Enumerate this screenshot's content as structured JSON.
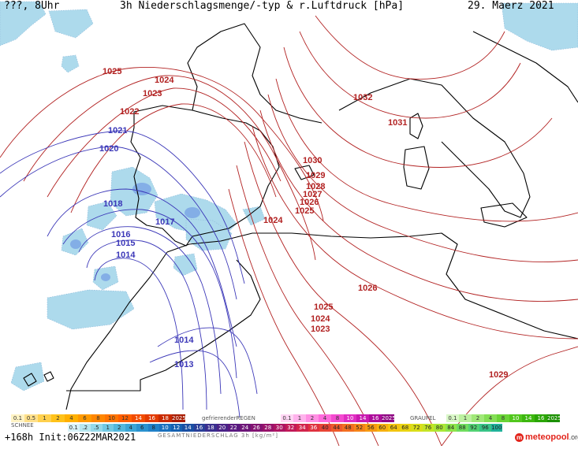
{
  "header": {
    "left": "???, 8Uhr",
    "title": "3h Niederschlagsmenge/-typ & r.Luftdruck [hPa]",
    "date": "29. Maerz 2021"
  },
  "footer": {
    "run_info": "+168h  Init:06Z22MAR2021",
    "brand": "meteopool",
    "brand_suffix": ".org"
  },
  "legend": {
    "snow_title": "SCHNEE",
    "snow_values": [
      "0.1",
      "0.5",
      "1",
      "2",
      "4",
      "6",
      "8",
      "10",
      "12",
      "14",
      "16",
      "18",
      "2025+"
    ],
    "freezing_rain_title": "gefrierenderREGEN",
    "freezing_rain_values": [
      "0.1",
      "1",
      "2",
      "4",
      "8",
      "10",
      "14",
      "16",
      "2025+"
    ],
    "hail_title": "GRAUPEL",
    "hail_values": [
      "0.1",
      "1",
      "2",
      "4",
      "8",
      "10",
      "14",
      "16",
      "2025+"
    ],
    "total_values": [
      "0.1",
      ".2",
      ".5",
      "1",
      "2",
      "4",
      "6",
      "8",
      "10",
      "12",
      "14",
      "16",
      "18",
      "20",
      "22",
      "24",
      "26",
      "28",
      "30",
      "32",
      "34",
      "36",
      "40",
      "44",
      "48",
      "52",
      "56",
      "60",
      "64",
      "68",
      "72",
      "76",
      "80",
      "84",
      "88",
      "92",
      "96",
      "100"
    ],
    "total_title": "GESAMTNIEDERSCHLAG 3h [kg/m²]",
    "colors": {
      "snow": [
        "#fff3c4",
        "#ffe08a",
        "#ffd04d",
        "#ffc21a",
        "#ffb000",
        "#ff9a00",
        "#ff8600",
        "#ff7300",
        "#ff5f00",
        "#f24c00",
        "#e23a00",
        "#c92a00",
        "#a81c00"
      ],
      "freezing_rain": [
        "#ffd6f4",
        "#ffb3ec",
        "#ff8fe3",
        "#ff6bdb",
        "#f44bd0",
        "#e02dc2",
        "#c919b0",
        "#ad0d9a",
        "#8e0682"
      ],
      "hail": [
        "#d9f7c7",
        "#bdf0a0",
        "#a0e878",
        "#84df55",
        "#6ad436",
        "#52c71e",
        "#3db70f",
        "#2aa505",
        "#1b9000"
      ],
      "total": [
        "#d8f2f7",
        "#b7e7f0",
        "#94d9ea",
        "#72c9e3",
        "#53b8dd",
        "#3aa5d6",
        "#2a92cf",
        "#2080c7",
        "#1a70bd",
        "#1560b0",
        "#1a4fa3",
        "#2a3f98",
        "#3a2f8f",
        "#4a2387",
        "#5a1a80",
        "#6d1678",
        "#821371",
        "#98126a",
        "#ad1462",
        "#c11a58",
        "#d2244c",
        "#df3240",
        "#e84535",
        "#ef5a2a",
        "#f36f20",
        "#f58418",
        "#f69a12",
        "#f6b00f",
        "#f2c40f",
        "#e9d412",
        "#d9de1a",
        "#c4e426",
        "#aae636",
        "#8de349",
        "#6fdc5e",
        "#52d173",
        "#37c387",
        "#20b19a"
      ]
    }
  },
  "isobars": {
    "red_color": "#b22222",
    "blue_color": "#3b37b8",
    "labels": [
      {
        "text": "1025",
        "kind": "red"
      },
      {
        "text": "1024",
        "kind": "red"
      },
      {
        "text": "1023",
        "kind": "red"
      },
      {
        "text": "1022",
        "kind": "red"
      },
      {
        "text": "1021",
        "kind": "blue"
      },
      {
        "text": "1020",
        "kind": "blue"
      },
      {
        "text": "1018",
        "kind": "blue"
      },
      {
        "text": "1017",
        "kind": "blue"
      },
      {
        "text": "1016",
        "kind": "blue"
      },
      {
        "text": "1015",
        "kind": "blue"
      },
      {
        "text": "1014",
        "kind": "blue"
      },
      {
        "text": "1032",
        "kind": "red"
      },
      {
        "text": "1031",
        "kind": "red"
      },
      {
        "text": "1030",
        "kind": "red"
      },
      {
        "text": "1029",
        "kind": "red"
      },
      {
        "text": "1028",
        "kind": "red"
      },
      {
        "text": "1027",
        "kind": "red"
      },
      {
        "text": "1026",
        "kind": "red"
      },
      {
        "text": "1025",
        "kind": "red"
      },
      {
        "text": "1024",
        "kind": "red"
      },
      {
        "text": "1026",
        "kind": "red"
      },
      {
        "text": "1025",
        "kind": "red"
      },
      {
        "text": "1024",
        "kind": "red"
      },
      {
        "text": "1023",
        "kind": "red"
      },
      {
        "text": "1029",
        "kind": "red"
      },
      {
        "text": "1014",
        "kind": "blue"
      },
      {
        "text": "1013",
        "kind": "blue"
      }
    ]
  }
}
